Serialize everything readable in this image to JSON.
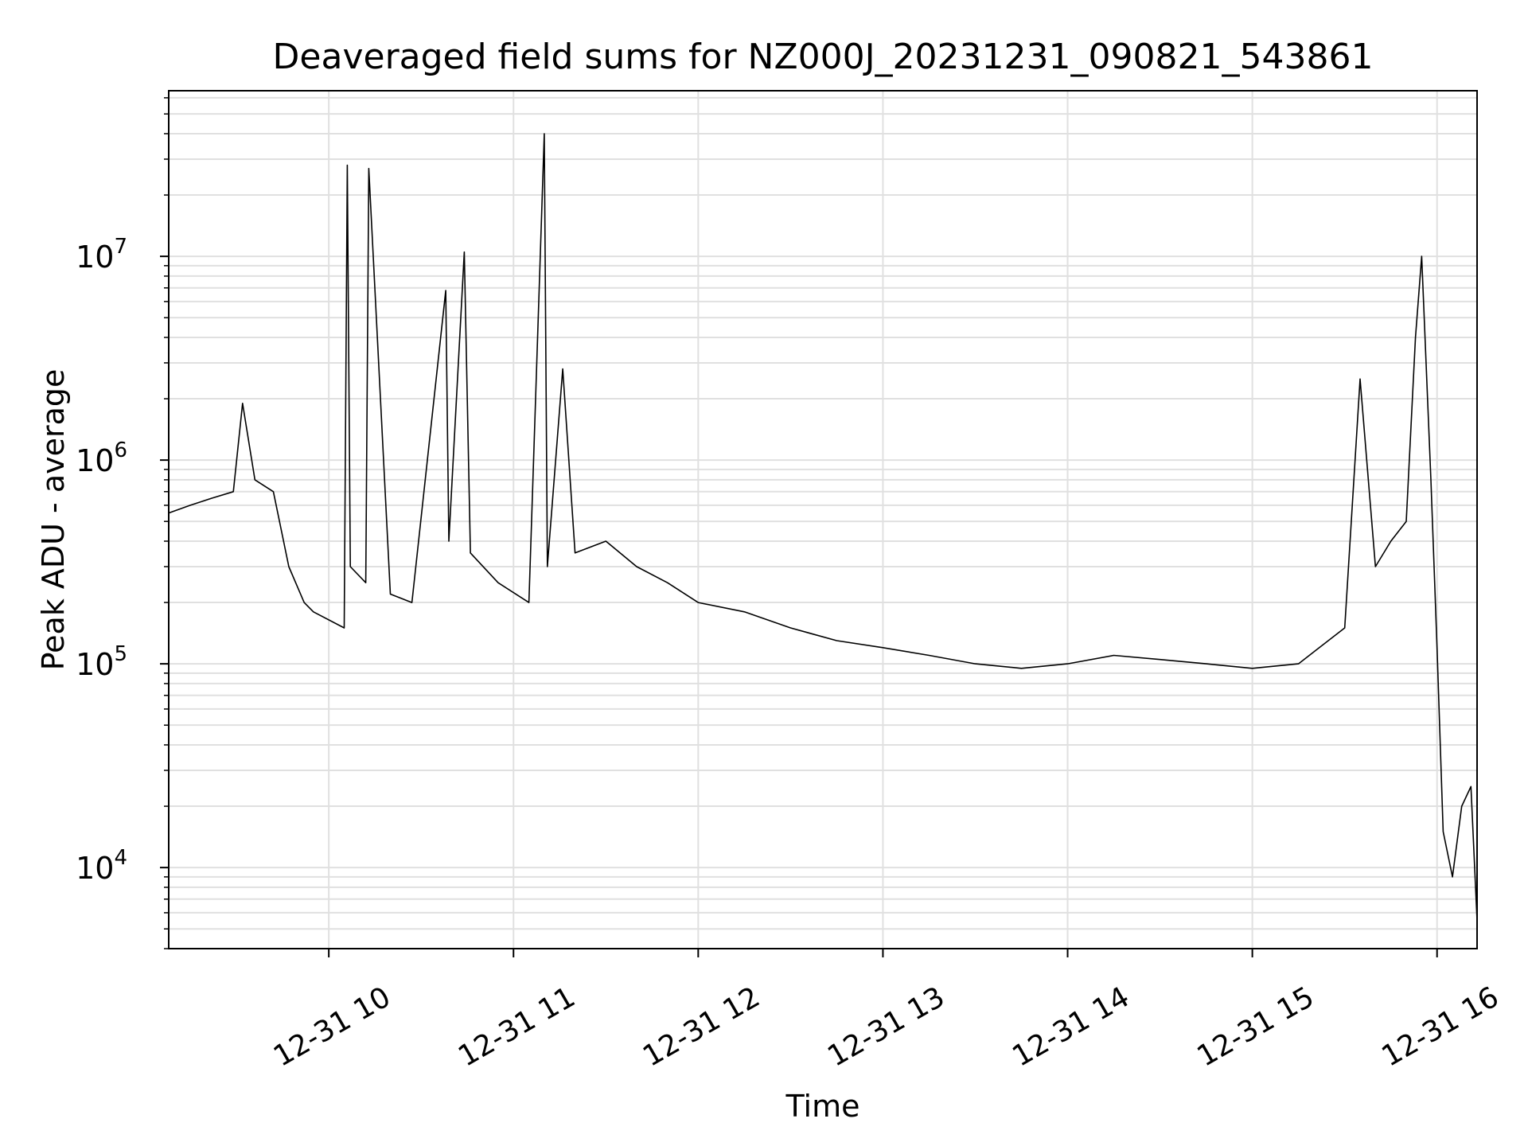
{
  "chart_data": {
    "type": "line",
    "title": "Deaveraged field sums for NZ000J_20231231_090821_543861",
    "xlabel": "Time",
    "ylabel": "Peak ADU - average",
    "yscale": "log",
    "ylim": [
      4000,
      65000000
    ],
    "xlim": [
      "2023-12-31 09:08",
      "2023-12-31 16:13"
    ],
    "grid": true,
    "line_color": "#000000",
    "grid_color": "#e0e0e0",
    "x_ticks": [
      {
        "value": "2023-12-31 10:00",
        "label": "12-31 10"
      },
      {
        "value": "2023-12-31 11:00",
        "label": "12-31 11"
      },
      {
        "value": "2023-12-31 12:00",
        "label": "12-31 12"
      },
      {
        "value": "2023-12-31 13:00",
        "label": "12-31 13"
      },
      {
        "value": "2023-12-31 14:00",
        "label": "12-31 14"
      },
      {
        "value": "2023-12-31 15:00",
        "label": "12-31 15"
      },
      {
        "value": "2023-12-31 16:00",
        "label": "12-31 16"
      }
    ],
    "y_ticks": [
      {
        "value": 10000,
        "base": "10",
        "exp": "4"
      },
      {
        "value": 100000,
        "base": "10",
        "exp": "5"
      },
      {
        "value": 1000000,
        "base": "10",
        "exp": "6"
      },
      {
        "value": 10000000,
        "base": "10",
        "exp": "7"
      }
    ],
    "series": [
      {
        "x": [
          "2023-12-31 09:08",
          "2023-12-31 09:15",
          "2023-12-31 09:22",
          "2023-12-31 09:29",
          "2023-12-31 09:32",
          "2023-12-31 09:36",
          "2023-12-31 09:42",
          "2023-12-31 09:47",
          "2023-12-31 09:52",
          "2023-12-31 09:55",
          "2023-12-31 10:05",
          "2023-12-31 10:06",
          "2023-12-31 10:07",
          "2023-12-31 10:12",
          "2023-12-31 10:13",
          "2023-12-31 10:20",
          "2023-12-31 10:27",
          "2023-12-31 10:38",
          "2023-12-31 10:39",
          "2023-12-31 10:44",
          "2023-12-31 10:46",
          "2023-12-31 10:55",
          "2023-12-31 11:05",
          "2023-12-31 11:10",
          "2023-12-31 11:11",
          "2023-12-31 11:16",
          "2023-12-31 11:20",
          "2023-12-31 11:30",
          "2023-12-31 11:40",
          "2023-12-31 11:50",
          "2023-12-31 12:00",
          "2023-12-31 12:15",
          "2023-12-31 12:30",
          "2023-12-31 12:45",
          "2023-12-31 13:00",
          "2023-12-31 13:15",
          "2023-12-31 13:30",
          "2023-12-31 13:45",
          "2023-12-31 14:00",
          "2023-12-31 14:15",
          "2023-12-31 14:30",
          "2023-12-31 14:45",
          "2023-12-31 15:00",
          "2023-12-31 15:15",
          "2023-12-31 15:30",
          "2023-12-31 15:35",
          "2023-12-31 15:40",
          "2023-12-31 15:45",
          "2023-12-31 15:50",
          "2023-12-31 15:53",
          "2023-12-31 15:55",
          "2023-12-31 15:58",
          "2023-12-31 16:00",
          "2023-12-31 16:02",
          "2023-12-31 16:05",
          "2023-12-31 16:08",
          "2023-12-31 16:11",
          "2023-12-31 16:13"
        ],
        "y": [
          550000,
          600000,
          650000,
          700000,
          1900000,
          800000,
          700000,
          300000,
          200000,
          180000,
          150000,
          28000000,
          300000,
          250000,
          27000000,
          220000,
          200000,
          6800000,
          400000,
          10500000,
          350000,
          250000,
          200000,
          40000000,
          300000,
          2800000,
          350000,
          400000,
          300000,
          250000,
          200000,
          180000,
          150000,
          130000,
          120000,
          110000,
          100000,
          95000,
          100000,
          110000,
          105000,
          100000,
          95000,
          100000,
          150000,
          2500000,
          300000,
          400000,
          500000,
          4000000,
          10000000,
          800000,
          120000,
          15000,
          9000,
          20000,
          25000,
          5500
        ]
      }
    ]
  }
}
